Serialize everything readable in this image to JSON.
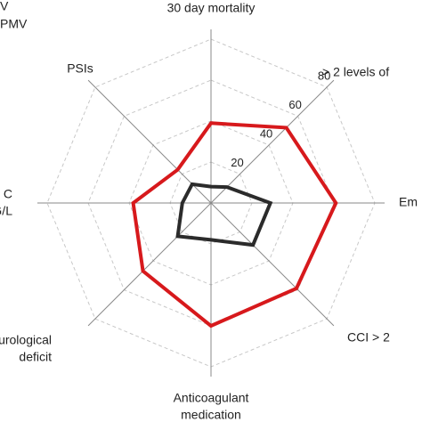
{
  "chart_data": {
    "type": "radar",
    "categories": [
      [
        "30 day mortality"
      ],
      [
        "> 2 levels of"
      ],
      [
        "Em"
      ],
      [
        "CCI > 2"
      ],
      [
        "Anticoagulant",
        "medication"
      ],
      [
        "leurological",
        "deficit"
      ],
      [
        "C",
        "G/L"
      ],
      [
        "PSIs"
      ]
    ],
    "series": [
      {
        "name": "V",
        "color": "#d7191c",
        "values": [
          39,
          52,
          61,
          59,
          60,
          47,
          38,
          23
        ]
      },
      {
        "name": "PMV",
        "color": "#2b2b2b",
        "values": [
          8,
          11,
          29,
          29,
          18,
          23,
          14,
          13
        ]
      }
    ],
    "ylim": [
      0,
      80
    ],
    "yticks": [
      20,
      40,
      60,
      80
    ],
    "grid": true
  }
}
